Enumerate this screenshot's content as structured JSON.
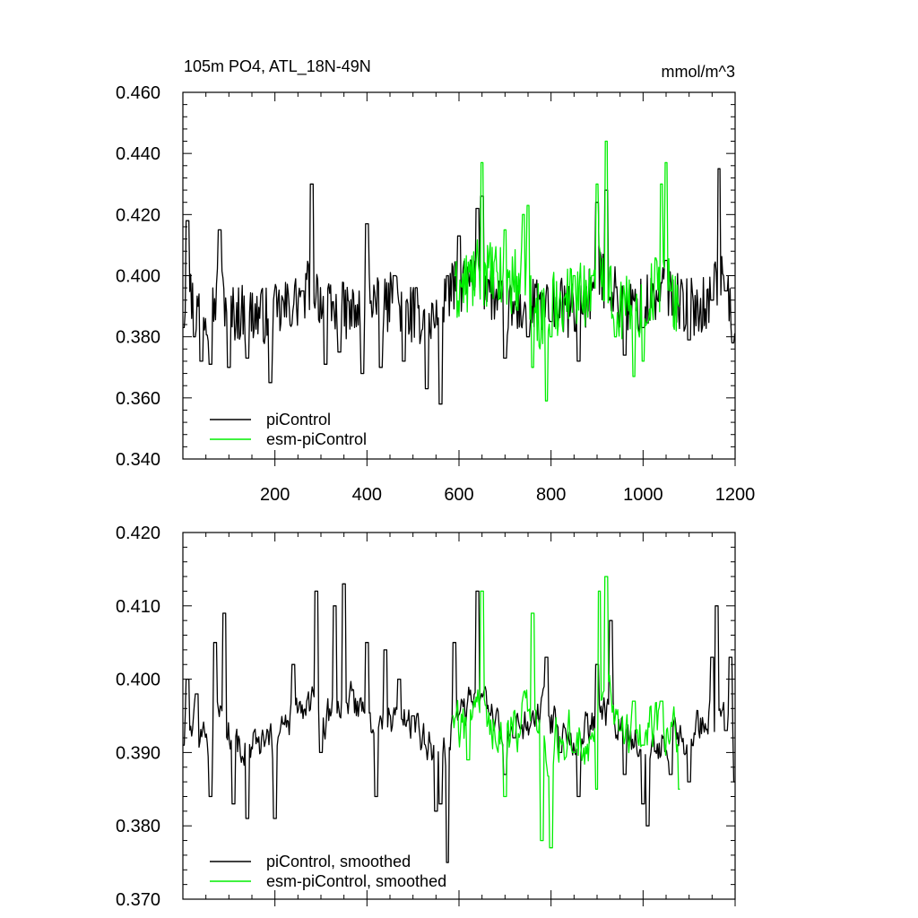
{
  "chart_data": [
    {
      "type": "line",
      "title": "105m PO4, ATL_18N-49N",
      "units": "mmol/m^3",
      "xlim": [
        0,
        1200
      ],
      "ylim": [
        0.34,
        0.46
      ],
      "x_ticks": [
        "200",
        "400",
        "600",
        "800",
        "1000",
        "1200"
      ],
      "y_ticks": [
        "0.460",
        "0.440",
        "0.420",
        "0.400",
        "0.380",
        "0.360",
        "0.340"
      ],
      "grid": false,
      "legend_position": "bottom-left",
      "series": [
        {
          "name": "piControl",
          "color": "#000000",
          "x_start": 1,
          "x_end": 1200,
          "mean": 0.392,
          "amplitude": 0.012,
          "points": [
            [
              1,
              0.383
            ],
            [
              10,
              0.418
            ],
            [
              25,
              0.38
            ],
            [
              40,
              0.372
            ],
            [
              60,
              0.371
            ],
            [
              80,
              0.415
            ],
            [
              100,
              0.37
            ],
            [
              140,
              0.373
            ],
            [
              190,
              0.365
            ],
            [
              260,
              0.395
            ],
            [
              280,
              0.43
            ],
            [
              310,
              0.371
            ],
            [
              340,
              0.375
            ],
            [
              390,
              0.368
            ],
            [
              400,
              0.417
            ],
            [
              430,
              0.37
            ],
            [
              460,
              0.4
            ],
            [
              480,
              0.372
            ],
            [
              530,
              0.363
            ],
            [
              560,
              0.358
            ],
            [
              575,
              0.4
            ],
            [
              600,
              0.413
            ],
            [
              640,
              0.422
            ],
            [
              650,
              0.426
            ],
            [
              700,
              0.373
            ],
            [
              750,
              0.38
            ],
            [
              800,
              0.385
            ],
            [
              860,
              0.372
            ],
            [
              900,
              0.424
            ],
            [
              920,
              0.428
            ],
            [
              960,
              0.374
            ],
            [
              1000,
              0.383
            ],
            [
              1050,
              0.405
            ],
            [
              1100,
              0.379
            ],
            [
              1150,
              0.392
            ],
            [
              1165,
              0.435
            ],
            [
              1180,
              0.395
            ],
            [
              1195,
              0.378
            ],
            [
              1200,
              0.381
            ]
          ]
        },
        {
          "name": "esm-piControl",
          "color": "#00ee00",
          "x_start": 590,
          "x_end": 1080,
          "mean": 0.393,
          "amplitude": 0.014,
          "points": [
            [
              590,
              0.4
            ],
            [
              650,
              0.437
            ],
            [
              700,
              0.415
            ],
            [
              740,
              0.42
            ],
            [
              750,
              0.423
            ],
            [
              760,
              0.37
            ],
            [
              790,
              0.359
            ],
            [
              800,
              0.38
            ],
            [
              850,
              0.4
            ],
            [
              890,
              0.4
            ],
            [
              900,
              0.43
            ],
            [
              920,
              0.444
            ],
            [
              940,
              0.38
            ],
            [
              980,
              0.367
            ],
            [
              1000,
              0.372
            ],
            [
              1040,
              0.43
            ],
            [
              1050,
              0.437
            ],
            [
              1060,
              0.395
            ],
            [
              1080,
              0.39
            ]
          ]
        }
      ]
    },
    {
      "type": "line",
      "xlim": [
        0,
        1200
      ],
      "ylim": [
        0.37,
        0.42
      ],
      "y_ticks": [
        "0.420",
        "0.410",
        "0.400",
        "0.390",
        "0.380",
        "0.370"
      ],
      "grid": false,
      "legend_position": "bottom-left",
      "series": [
        {
          "name": "piControl, smoothed",
          "color": "#000000",
          "x_start": 1,
          "x_end": 1200,
          "mean": 0.393,
          "amplitude": 0.006,
          "points": [
            [
              1,
              0.391
            ],
            [
              10,
              0.4
            ],
            [
              30,
              0.398
            ],
            [
              60,
              0.384
            ],
            [
              70,
              0.405
            ],
            [
              90,
              0.409
            ],
            [
              110,
              0.383
            ],
            [
              140,
              0.381
            ],
            [
              200,
              0.381
            ],
            [
              240,
              0.402
            ],
            [
              290,
              0.412
            ],
            [
              300,
              0.39
            ],
            [
              330,
              0.41
            ],
            [
              350,
              0.413
            ],
            [
              400,
              0.405
            ],
            [
              420,
              0.384
            ],
            [
              440,
              0.404
            ],
            [
              470,
              0.4
            ],
            [
              500,
              0.395
            ],
            [
              550,
              0.382
            ],
            [
              560,
              0.383
            ],
            [
              575,
              0.375
            ],
            [
              590,
              0.405
            ],
            [
              640,
              0.412
            ],
            [
              700,
              0.387
            ],
            [
              720,
              0.392
            ],
            [
              790,
              0.403
            ],
            [
              820,
              0.39
            ],
            [
              860,
              0.384
            ],
            [
              900,
              0.402
            ],
            [
              930,
              0.408
            ],
            [
              960,
              0.387
            ],
            [
              1000,
              0.383
            ],
            [
              1010,
              0.38
            ],
            [
              1060,
              0.387
            ],
            [
              1100,
              0.386
            ],
            [
              1150,
              0.403
            ],
            [
              1160,
              0.41
            ],
            [
              1180,
              0.393
            ],
            [
              1190,
              0.403
            ],
            [
              1200,
              0.386
            ]
          ]
        },
        {
          "name": "esm-piControl, smoothed",
          "color": "#00ee00",
          "x_start": 585,
          "x_end": 1080,
          "mean": 0.393,
          "amplitude": 0.008,
          "points": [
            [
              585,
              0.395
            ],
            [
              620,
              0.389
            ],
            [
              650,
              0.412
            ],
            [
              700,
              0.384
            ],
            [
              760,
              0.409
            ],
            [
              780,
              0.378
            ],
            [
              800,
              0.377
            ],
            [
              850,
              0.39
            ],
            [
              900,
              0.385
            ],
            [
              905,
              0.412
            ],
            [
              920,
              0.414
            ],
            [
              950,
              0.393
            ],
            [
              980,
              0.397
            ],
            [
              1000,
              0.391
            ],
            [
              1040,
              0.397
            ],
            [
              1080,
              0.385
            ]
          ]
        }
      ]
    }
  ]
}
